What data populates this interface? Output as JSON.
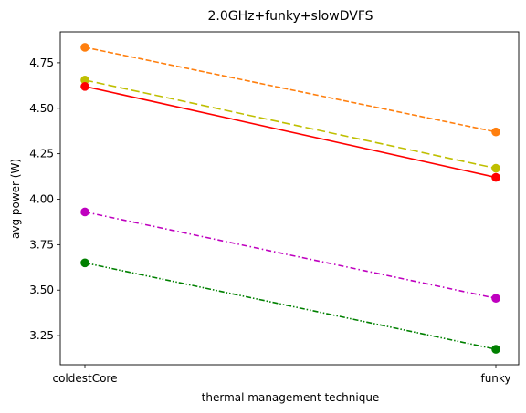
{
  "chart_data": {
    "type": "line",
    "title": "2.0GHz+funky+slowDVFS",
    "xlabel": "thermal management technique",
    "ylabel": "avg power (W)",
    "categories": [
      "coldestCore",
      "funky"
    ],
    "ylim": [
      3.09,
      4.92
    ],
    "yticks": [
      3.25,
      3.5,
      3.75,
      4.0,
      4.25,
      4.5,
      4.75
    ],
    "ytick_labels": [
      "3.25",
      "3.50",
      "3.75",
      "4.00",
      "4.25",
      "4.50",
      "4.75"
    ],
    "grid": false,
    "series": [
      {
        "values": [
          4.835,
          4.37
        ],
        "color": "#ff7f0e",
        "linestyle": "dashed"
      },
      {
        "values": [
          4.655,
          4.17
        ],
        "color": "#bfbf00",
        "linestyle": "longdash"
      },
      {
        "values": [
          4.62,
          4.12
        ],
        "color": "#ff0000",
        "linestyle": "solid"
      },
      {
        "values": [
          3.93,
          3.455
        ],
        "color": "#bf00bf",
        "linestyle": "dashdot"
      },
      {
        "values": [
          3.65,
          3.175
        ],
        "color": "#008000",
        "linestyle": "dashdotdot"
      }
    ]
  }
}
